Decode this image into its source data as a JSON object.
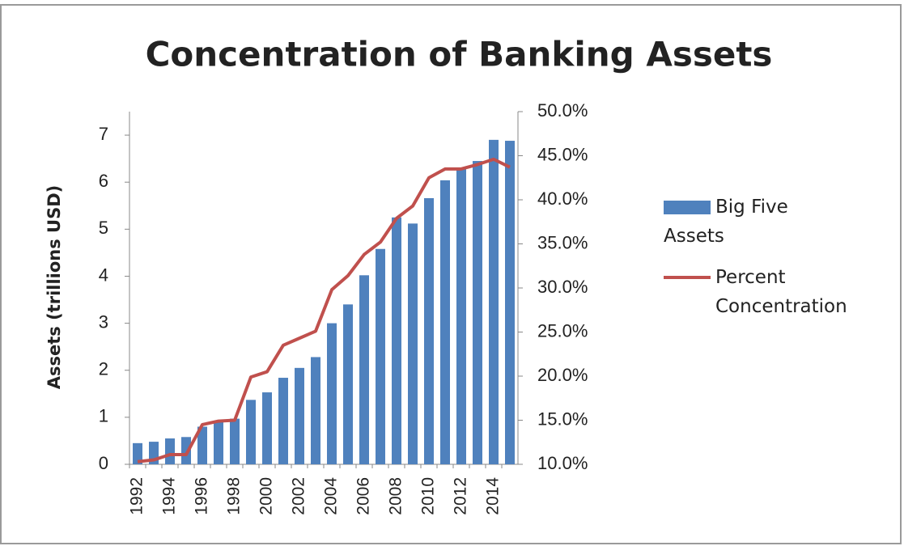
{
  "chart_data": {
    "type": "bar-line",
    "title": "Concentration of Banking Assets",
    "y_label": "Assets (trillions USD)",
    "categories": [
      "1992",
      null,
      "1994",
      null,
      "1996",
      null,
      "1998",
      null,
      "2000",
      null,
      "2002",
      null,
      "2004",
      null,
      "2006",
      null,
      "2008",
      null,
      "2010",
      null,
      "2012",
      null,
      "2014",
      null
    ],
    "series": [
      {
        "name": "Big Five Assets",
        "type": "bar",
        "color": "#4f81bd",
        "values": [
          0.45,
          0.48,
          0.55,
          0.58,
          0.8,
          0.9,
          0.97,
          1.37,
          1.53,
          1.84,
          2.05,
          2.28,
          3.0,
          3.4,
          4.02,
          4.58,
          5.25,
          5.12,
          5.66,
          6.04,
          6.28,
          6.45,
          6.9,
          6.88
        ]
      },
      {
        "name": "Percent Concentration",
        "type": "line",
        "axis": "y2",
        "color": "#c0504d",
        "values": [
          10.3,
          10.5,
          11.1,
          11.1,
          14.5,
          14.9,
          15.0,
          19.9,
          20.5,
          23.5,
          24.3,
          25.1,
          29.8,
          31.4,
          33.8,
          35.2,
          37.9,
          39.3,
          42.5,
          43.5,
          43.5,
          44.0,
          44.6,
          43.7
        ]
      }
    ],
    "ylim": [
      0,
      7.5
    ],
    "yticks": [
      0,
      1,
      2,
      3,
      4,
      5,
      6,
      7
    ],
    "y2lim": [
      10,
      50
    ],
    "y2ticks": [
      {
        "value": 10,
        "label": "10.0%"
      },
      {
        "value": 15,
        "label": "15.0%"
      },
      {
        "value": 20,
        "label": "20.0%"
      },
      {
        "value": 25,
        "label": "25.0%"
      },
      {
        "value": 30,
        "label": "30.0%"
      },
      {
        "value": 35,
        "label": "35.0%"
      },
      {
        "value": 40,
        "label": "40.0%"
      },
      {
        "value": 45,
        "label": "45.0%"
      },
      {
        "value": 50,
        "label": "50.0%"
      }
    ],
    "legend": "right"
  }
}
